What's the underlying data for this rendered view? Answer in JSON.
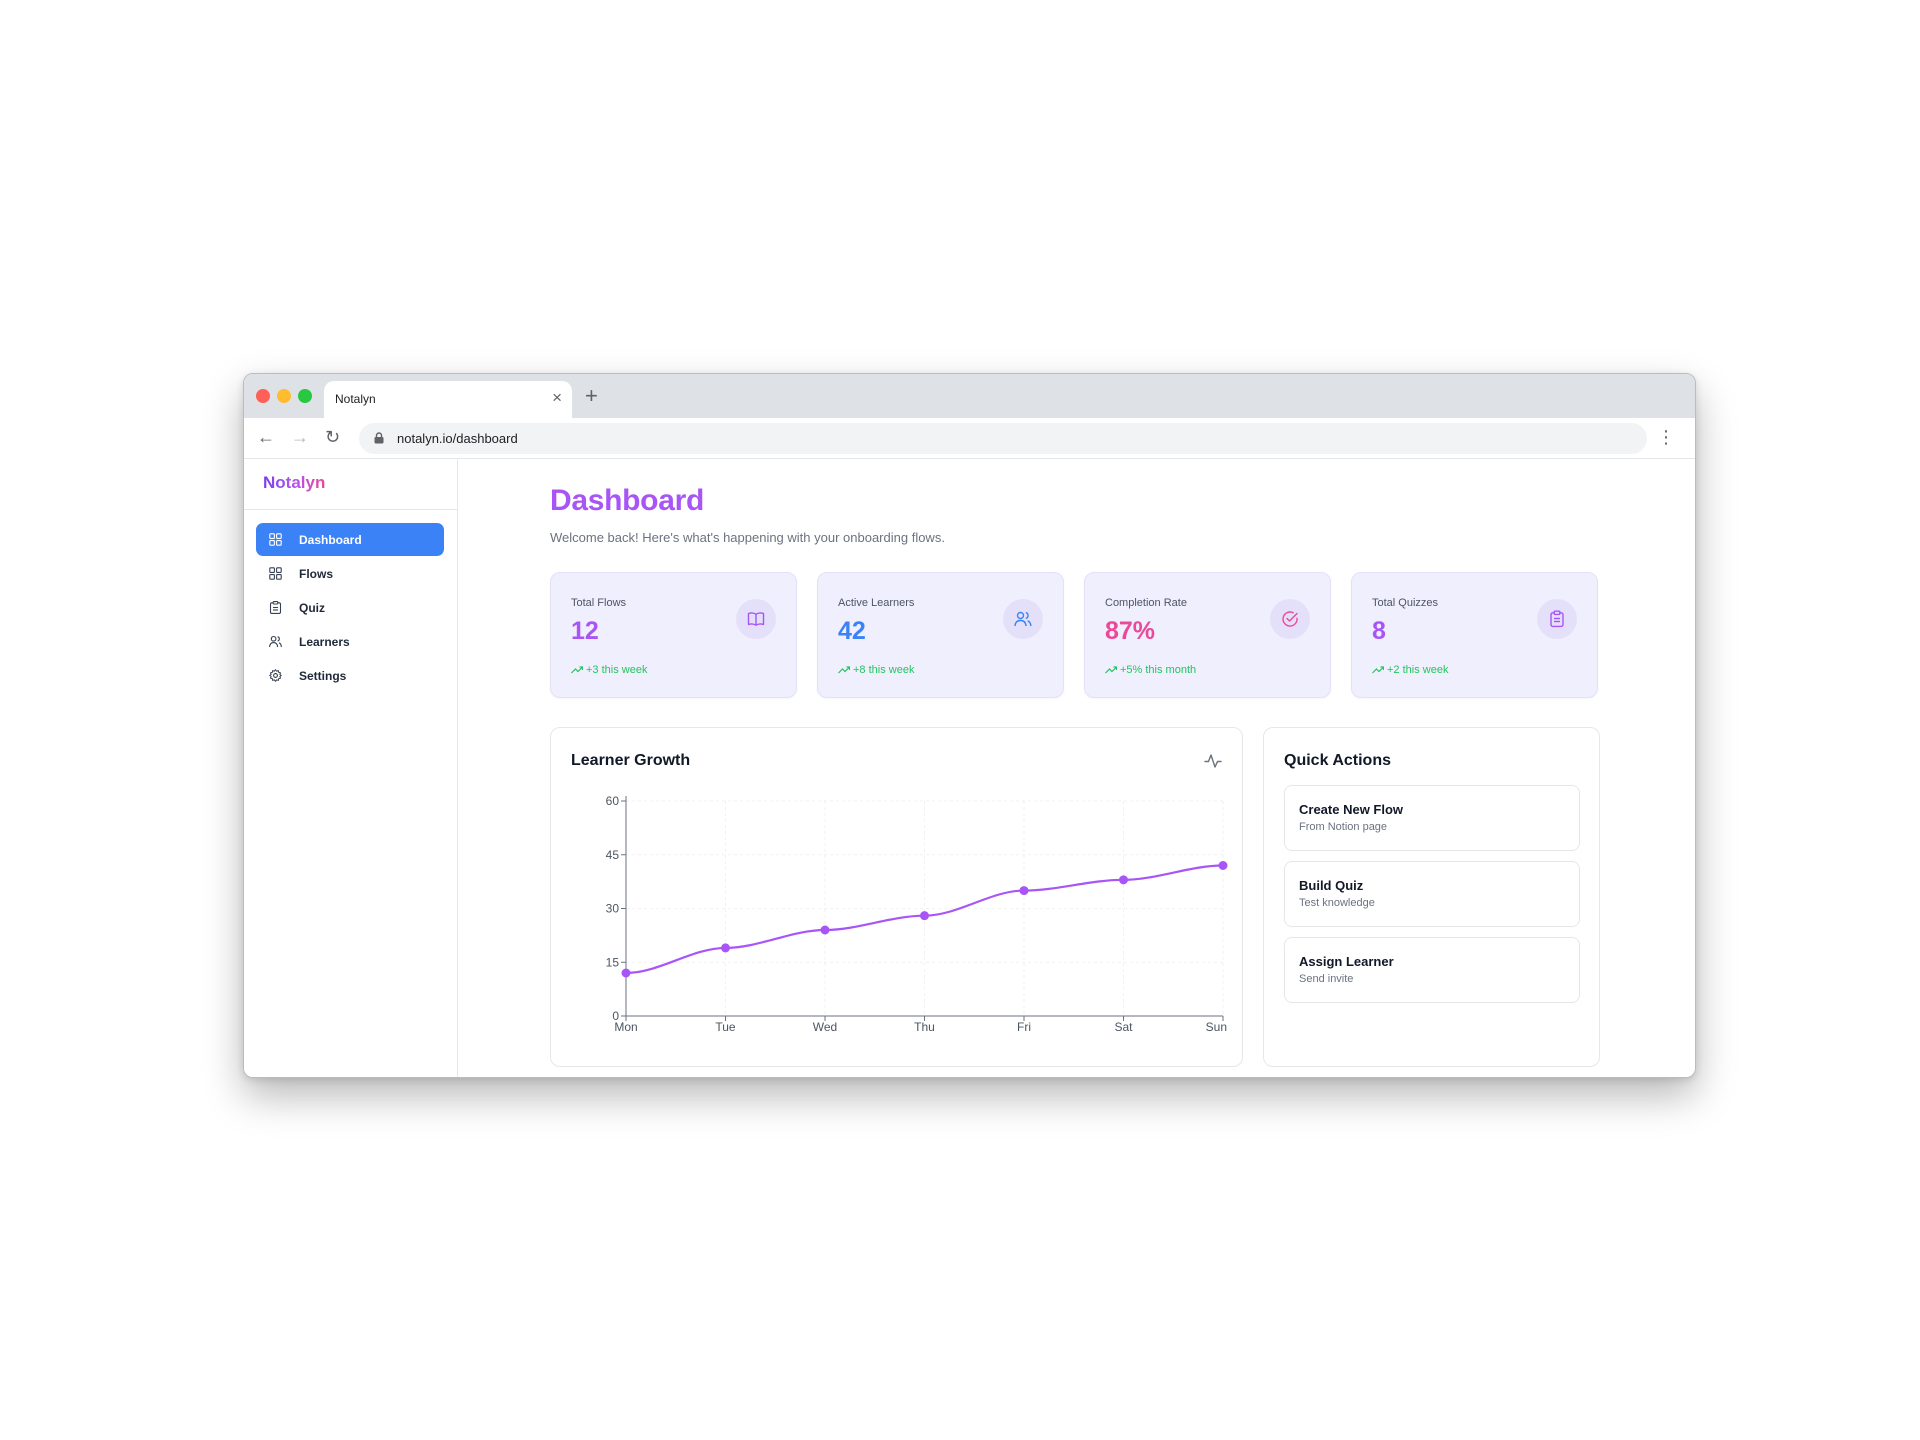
{
  "browser": {
    "tab_title": "Notalyn",
    "tab_close": "×",
    "new_tab": "+",
    "url": "notalyn.io/dashboard",
    "back": "←",
    "forward": "→",
    "reload": "↻",
    "menu": "⋮"
  },
  "sidebar": {
    "brand": "Notalyn",
    "items": [
      {
        "label": "Dashboard",
        "icon": "layout-grid-icon",
        "active": true
      },
      {
        "label": "Flows",
        "icon": "grid-icon",
        "active": false
      },
      {
        "label": "Quiz",
        "icon": "clipboard-icon",
        "active": false
      },
      {
        "label": "Learners",
        "icon": "users-icon",
        "active": false
      },
      {
        "label": "Settings",
        "icon": "gear-icon",
        "active": false
      }
    ]
  },
  "header": {
    "title": "Dashboard",
    "subtitle": "Welcome back! Here's what's happening with your onboarding flows."
  },
  "stats": [
    {
      "label": "Total Flows",
      "value": "12",
      "delta": "+3 this week",
      "icon": "book-open-icon",
      "color": "#a855f7"
    },
    {
      "label": "Active Learners",
      "value": "42",
      "delta": "+8 this week",
      "icon": "users-icon",
      "color": "#3b82f6"
    },
    {
      "label": "Completion Rate",
      "value": "87%",
      "delta": "+5% this month",
      "icon": "check-circle-icon",
      "color": "#ec4899"
    },
    {
      "label": "Total Quizzes",
      "value": "8",
      "delta": "+2 this week",
      "icon": "clipboard-icon",
      "color": "#a855f7"
    }
  ],
  "growth_card": {
    "title": "Learner Growth",
    "icon": "activity-icon"
  },
  "chart_data": {
    "type": "line",
    "title": "Learner Growth",
    "xlabel": "",
    "ylabel": "",
    "categories": [
      "Mon",
      "Tue",
      "Wed",
      "Thu",
      "Fri",
      "Sat",
      "Sun"
    ],
    "series": [
      {
        "values": [
          12,
          19,
          24,
          28,
          35,
          38,
          42
        ],
        "color": "#a855f7"
      }
    ],
    "ylim": [
      0,
      60
    ],
    "yticks": [
      "0",
      "15",
      "30",
      "45",
      "60"
    ],
    "grid": true,
    "legend": "none"
  },
  "quick_actions": {
    "title": "Quick Actions",
    "items": [
      {
        "title": "Create New Flow",
        "subtitle": "From Notion page"
      },
      {
        "title": "Build Quiz",
        "subtitle": "Test knowledge"
      },
      {
        "title": "Assign Learner",
        "subtitle": "Send invite"
      }
    ]
  }
}
